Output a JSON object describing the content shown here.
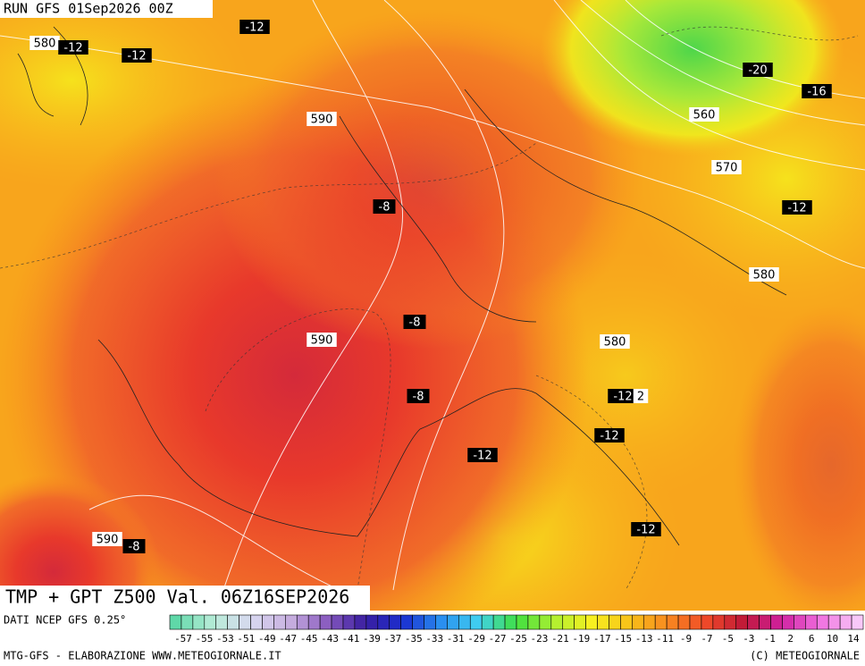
{
  "header": {
    "run": "RUN GFS 01Sep2026 00Z"
  },
  "map": {
    "labels": [
      "580",
      "-12",
      "-12",
      "-12",
      "590",
      "-20",
      "-16",
      "560",
      "570",
      "-8",
      "-12",
      "580",
      "-8",
      "590",
      "580",
      "-8",
      "-12",
      "2",
      "-12",
      "-12",
      "-12",
      "590",
      "-8"
    ]
  },
  "caption": "TMP + GPT Z500 Val. 06Z16SEP2026",
  "footer": {
    "source": "DATI NCEP GFS 0.25°",
    "scale": [
      -57,
      -55,
      -53,
      -51,
      -49,
      -47,
      -45,
      -43,
      -41,
      -39,
      -37,
      -35,
      -33,
      -31,
      -29,
      -27,
      -25,
      -23,
      -21,
      -19,
      -17,
      -15,
      -13,
      -11,
      -9,
      -7,
      -5,
      -3,
      -1,
      2,
      6,
      10,
      14
    ],
    "credit": "MTG-GFS - ELABORAZIONE WWW.METEOGIORNALE.IT",
    "copyright": "(C) METEOGIORNALE"
  }
}
